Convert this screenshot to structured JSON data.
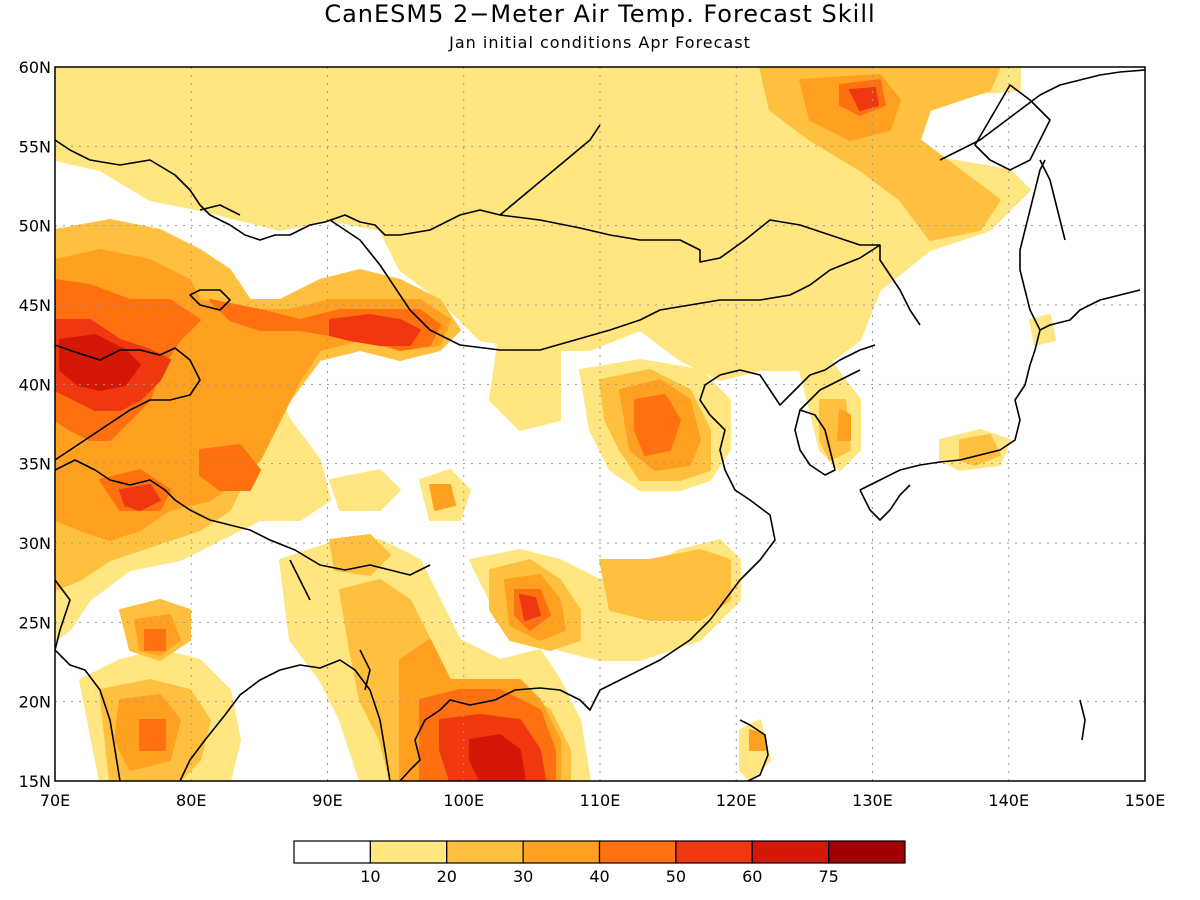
{
  "title": "CanESM5 2−Meter Air Temp. Forecast Skill",
  "subtitle": "Jan initial conditions  Apr Forecast",
  "map": {
    "lon_range": [
      70,
      150
    ],
    "lat_range": [
      15,
      60
    ],
    "lon_ticks": [
      "70E",
      "80E",
      "90E",
      "100E",
      "110E",
      "120E",
      "130E",
      "140E",
      "150E"
    ],
    "lat_ticks": [
      "15N",
      "20N",
      "25N",
      "30N",
      "35N",
      "40N",
      "45N",
      "50N",
      "55N",
      "60N"
    ],
    "grid": "dotted, every 10° longitude and 5° latitude",
    "background_color": "#ffffff",
    "coastline_color": "#000000"
  },
  "colorbar": {
    "labels": [
      "10",
      "20",
      "30",
      "40",
      "50",
      "60",
      "75"
    ],
    "colors": [
      "#ffffff",
      "#ffe680",
      "#ffc040",
      "#ffa020",
      "#ff7010",
      "#f03810",
      "#d41808",
      "#a00000"
    ]
  }
}
